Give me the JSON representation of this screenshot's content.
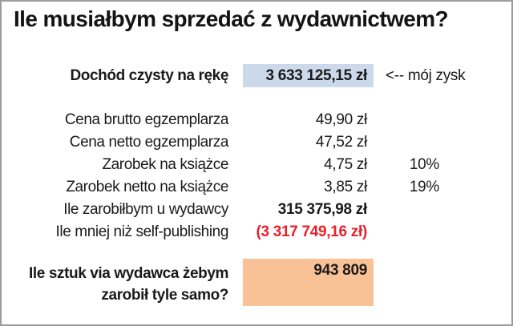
{
  "title": "Ile musiałbym sprzedać z wydawnictwem?",
  "profit_row": {
    "label": "Dochód czysty na rękę",
    "value": "3 633 125,15 zł",
    "annotation": "<-- mój zysk"
  },
  "detail_rows": [
    {
      "label": "Cena brutto egzemplarza",
      "value": "49,90 zł",
      "pct": ""
    },
    {
      "label": "Cena netto egzemplarza",
      "value": "47,52 zł",
      "pct": ""
    },
    {
      "label": "Zarobek na książce",
      "value": "4,75 zł",
      "pct": "10%"
    },
    {
      "label": "Zarobek netto na książce",
      "value": "3,85 zł",
      "pct": "19%"
    },
    {
      "label": "Ile zarobiłbym u wydawcy",
      "value": "315 375,98 zł",
      "pct": ""
    },
    {
      "label": "Ile mniej niż self-publishing",
      "value": "(3 317 749,16 zł)",
      "pct": ""
    }
  ],
  "units_row": {
    "label_line1": "Ile sztuk via wydawca żebym",
    "label_line2": "zarobił tyle samo?",
    "value": "943 809"
  },
  "colors": {
    "highlight_blue": "#ccd9ea",
    "highlight_orange": "#f8c196",
    "negative_red": "#e8202a"
  },
  "chart_data": {
    "type": "table",
    "title": "Ile musiałbym sprzedać z wydawnictwem?",
    "rows": [
      {
        "label": "Dochód czysty na rękę",
        "display": "3 633 125,15 zł",
        "value": 3633125.15,
        "unit": "zł",
        "note": "<-- mój zysk",
        "highlight": "blue"
      },
      {
        "label": "Cena brutto egzemplarza",
        "display": "49,90 zł",
        "value": 49.9,
        "unit": "zł"
      },
      {
        "label": "Cena netto egzemplarza",
        "display": "47,52 zł",
        "value": 47.52,
        "unit": "zł"
      },
      {
        "label": "Zarobek na książce",
        "display": "4,75 zł",
        "value": 4.75,
        "unit": "zł",
        "percent": "10%"
      },
      {
        "label": "Zarobek netto na książce",
        "display": "3,85 zł",
        "value": 3.85,
        "unit": "zł",
        "percent": "19%"
      },
      {
        "label": "Ile zarobiłbym u wydawcy",
        "display": "315 375,98 zł",
        "value": 315375.98,
        "unit": "zł"
      },
      {
        "label": "Ile mniej niż self-publishing",
        "display": "(3 317 749,16 zł)",
        "value": -3317749.16,
        "unit": "zł"
      },
      {
        "label": "Ile sztuk via wydawca żebym zarobił tyle samo?",
        "display": "943 809",
        "value": 943809,
        "unit": "sztuk",
        "highlight": "orange"
      }
    ]
  }
}
